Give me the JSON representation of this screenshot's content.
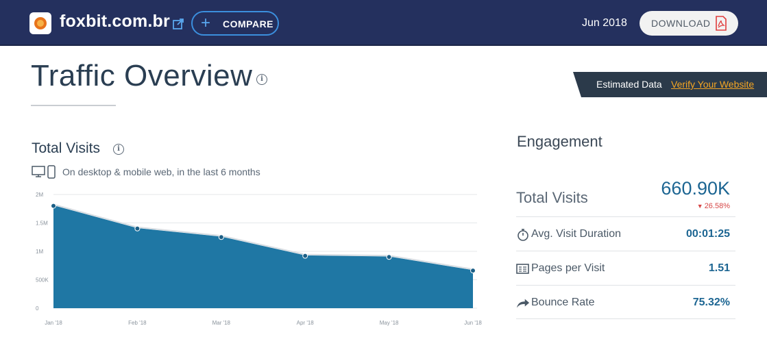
{
  "header": {
    "site_name": "foxbit.com.br",
    "compare_label": "COMPARE",
    "date": "Jun 2018",
    "download_label": "DOWNLOAD"
  },
  "page": {
    "title": "Traffic Overview"
  },
  "banner": {
    "estimated": "Estimated Data",
    "verify": "Verify Your Website"
  },
  "total_visits": {
    "title": "Total Visits",
    "subtitle": "On desktop & mobile web, in the last 6 months"
  },
  "chart_data": {
    "type": "area",
    "x": [
      "Jan '18",
      "Feb '18",
      "Mar '18",
      "Apr '18",
      "May '18",
      "Jun '18"
    ],
    "series": [
      {
        "values": [
          1800000,
          1400000,
          1250000,
          920000,
          900000,
          660900
        ]
      }
    ],
    "y_ticks": [
      "0",
      "500K",
      "1M",
      "1.5M",
      "2M"
    ],
    "ylim": [
      0,
      2000000
    ],
    "grid": true,
    "color": "#1f77a4"
  },
  "engagement": {
    "title": "Engagement",
    "total_visits_label": "Total Visits",
    "total_visits_value": "660.90K",
    "change": "26.58%",
    "metrics": [
      {
        "icon": "stopwatch-icon",
        "label": "Avg. Visit Duration",
        "value": "00:01:25"
      },
      {
        "icon": "pages-icon",
        "label": "Pages per Visit",
        "value": "1.51"
      },
      {
        "icon": "bounce-arrow-icon",
        "label": "Bounce Rate",
        "value": "75.32%"
      }
    ]
  }
}
